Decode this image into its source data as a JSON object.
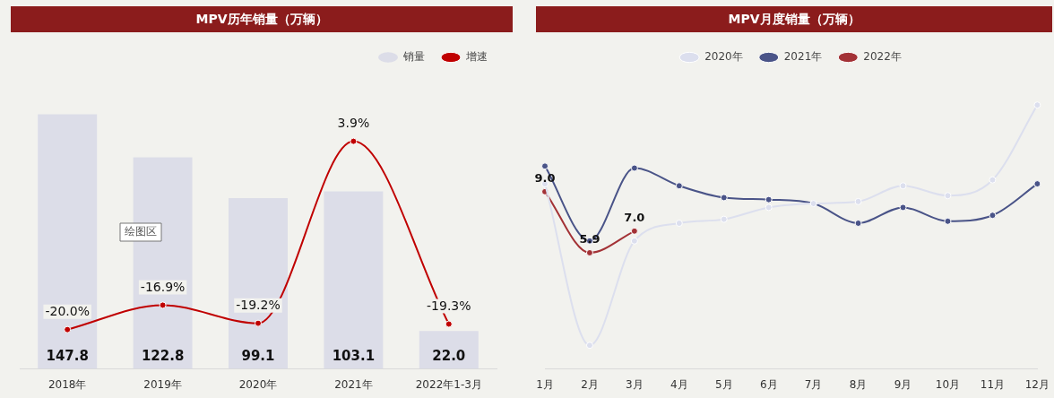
{
  "chart_data": [
    {
      "type": "bar",
      "title": "MPV历年销量（万辆）",
      "categories": [
        "2018年",
        "2019年",
        "2020年",
        "2021年",
        "2022年1-3月"
      ],
      "series": [
        {
          "name": "销量",
          "type": "bar",
          "color": "#dcdde8",
          "values": [
            147.8,
            122.8,
            99.1,
            103.1,
            22.0
          ],
          "value_labels": [
            "147.8",
            "122.8",
            "99.1",
            "103.1",
            "22.0"
          ]
        },
        {
          "name": "增速",
          "type": "line",
          "axis": "y2",
          "color": "#c00000",
          "values": [
            -20.0,
            -16.9,
            -19.2,
            3.9,
            -19.3
          ],
          "value_labels": [
            "-20.0%",
            "-16.9%",
            "-19.2%",
            "3.9%",
            "-19.3%"
          ]
        }
      ],
      "tick_labels": "x",
      "grid": false,
      "legend": "top right",
      "marker": "circle",
      "annotations": [
        "绘图区"
      ]
    },
    {
      "type": "line",
      "title": "MPV月度销量（万辆）",
      "categories": [
        "1月",
        "2月",
        "3月",
        "4月",
        "5月",
        "6月",
        "7月",
        "8月",
        "9月",
        "10月",
        "11月",
        "12月"
      ],
      "series": [
        {
          "name": "2020年",
          "color": "#dcdfee",
          "values": [
            9.4,
            1.2,
            6.5,
            7.4,
            7.6,
            8.2,
            8.4,
            8.5,
            9.3,
            8.8,
            9.6,
            13.4
          ]
        },
        {
          "name": "2021年",
          "color": "#4a5488",
          "values": [
            10.3,
            6.5,
            10.2,
            9.3,
            8.7,
            8.6,
            8.4,
            7.4,
            8.2,
            7.5,
            7.8,
            9.4
          ]
        },
        {
          "name": "2022年",
          "color": "#a33236",
          "values": [
            9.0,
            5.9,
            7.0,
            null,
            null,
            null,
            null,
            null,
            null,
            null,
            null,
            null
          ],
          "value_labels": [
            "9.0",
            "5.9",
            "7.0",
            null,
            null,
            null,
            null,
            null,
            null,
            null,
            null,
            null
          ]
        }
      ],
      "tick_labels": "x",
      "grid": false,
      "legend": "top",
      "marker": "circle"
    }
  ]
}
